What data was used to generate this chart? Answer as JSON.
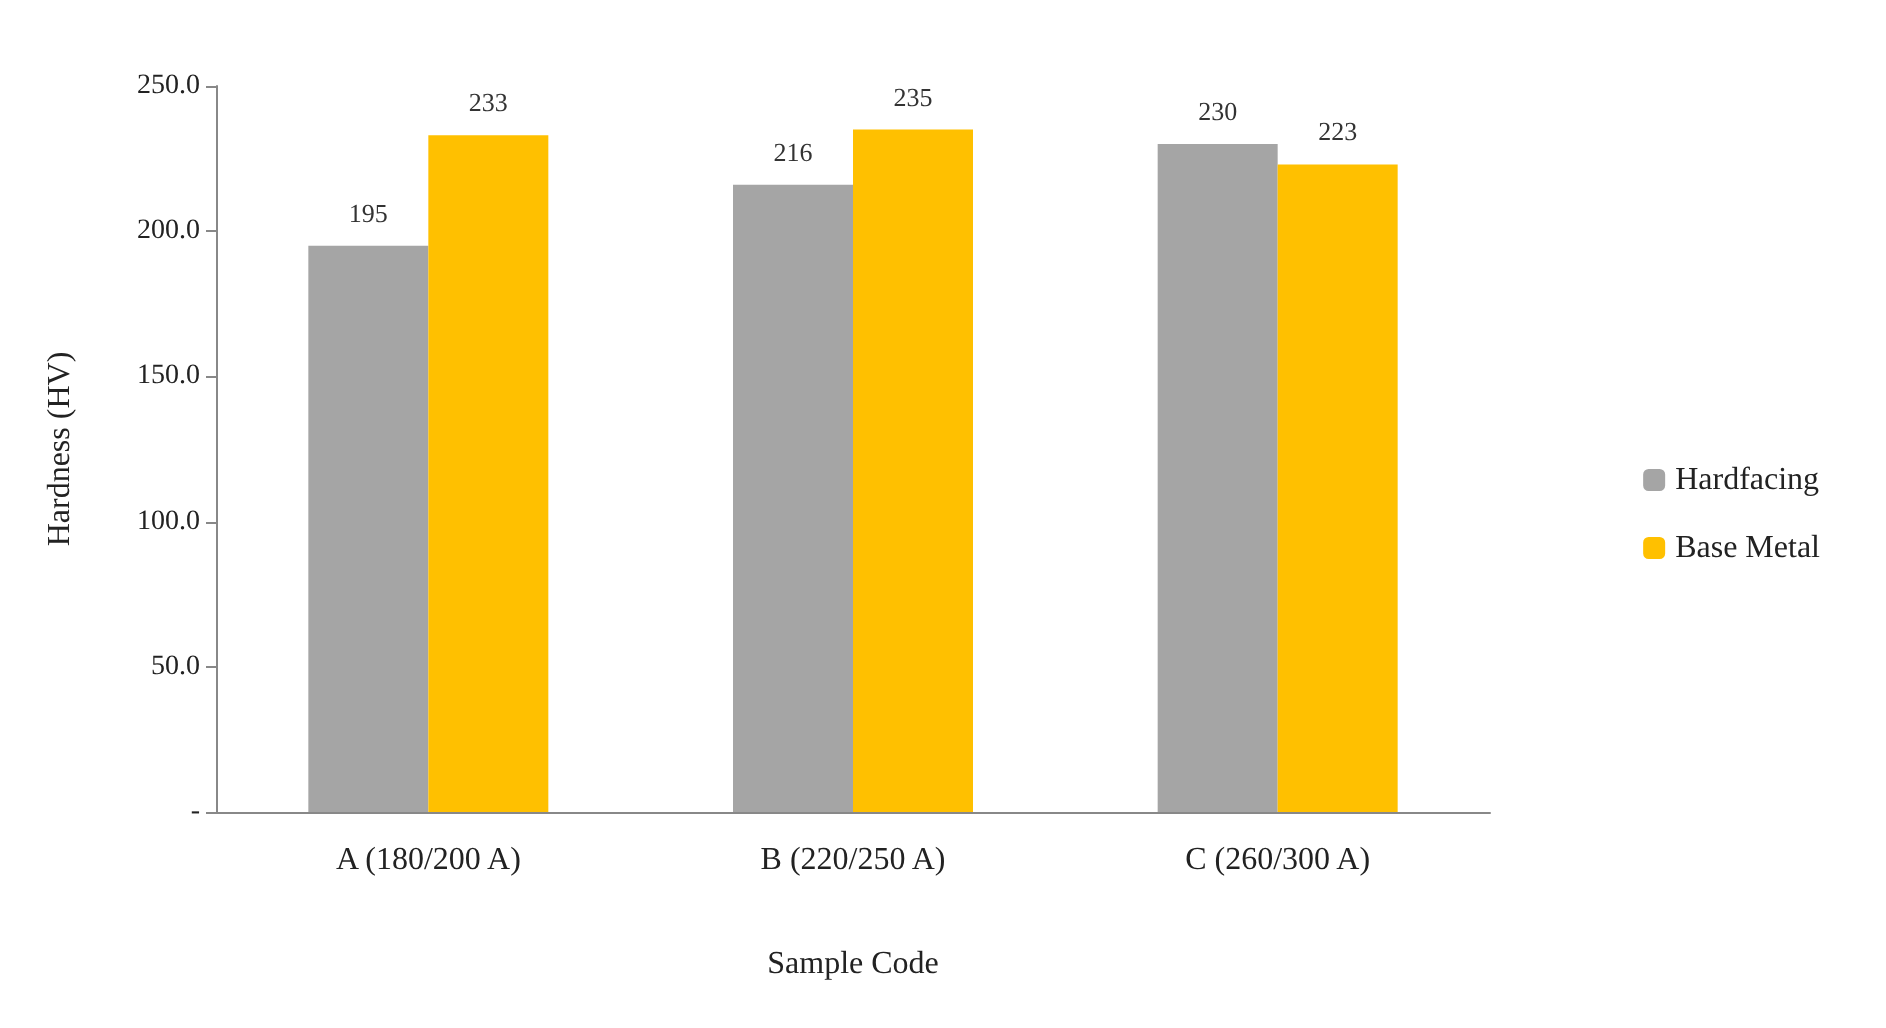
{
  "chart_data": {
    "type": "bar",
    "xlabel": "Sample Code",
    "ylabel": "Hardness (HV)",
    "categories": [
      "A (180/200 A)",
      "B (220/250 A)",
      "C (260/300 A)"
    ],
    "series": [
      {
        "name": "Hardfacing",
        "color": "#a5a5a5",
        "values": [
          195,
          216,
          230
        ]
      },
      {
        "name": "Base Metal",
        "color": "#ffc000",
        "values": [
          233,
          235,
          223
        ]
      }
    ],
    "ylim": [
      0,
      250
    ],
    "yticks": [
      {
        "value": 0,
        "label": "-"
      },
      {
        "value": 50,
        "label": "50.0"
      },
      {
        "value": 100,
        "label": "100.0"
      },
      {
        "value": 150,
        "label": "150.0"
      },
      {
        "value": 200,
        "label": "200.0"
      },
      {
        "value": 250,
        "label": "250.0"
      }
    ],
    "data_labels": true,
    "grid": false,
    "legend": "right"
  }
}
